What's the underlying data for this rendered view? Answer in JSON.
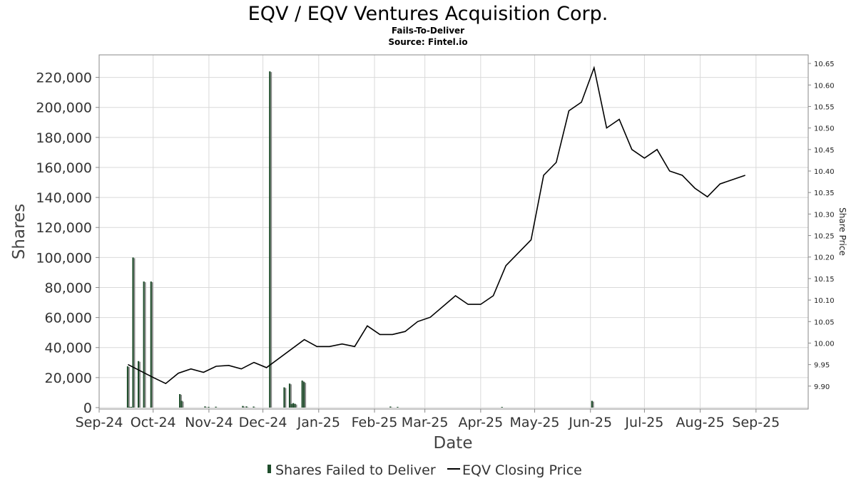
{
  "chart_data": {
    "type": "bar",
    "title": "EQV / EQV Ventures Acquisition Corp.",
    "subtitle": "Fails-To-Deliver",
    "source": "Source: Fintel.io",
    "xlabel": "Date",
    "ylabel": "Shares",
    "y2label": "Share Price",
    "x_range": [
      "2024-09-01",
      "2025-09-30"
    ],
    "ylim": [
      0,
      235000
    ],
    "y2lim": [
      9.85,
      10.67
    ],
    "x_ticks": [
      {
        "date": "2024-09-01",
        "label": "Sep-24"
      },
      {
        "date": "2024-10-01",
        "label": "Oct-24"
      },
      {
        "date": "2024-11-01",
        "label": "Nov-24"
      },
      {
        "date": "2024-12-01",
        "label": "Dec-24"
      },
      {
        "date": "2025-01-01",
        "label": "Jan-25"
      },
      {
        "date": "2025-02-01",
        "label": "Feb-25"
      },
      {
        "date": "2025-03-01",
        "label": "Mar-25"
      },
      {
        "date": "2025-04-01",
        "label": "Apr-25"
      },
      {
        "date": "2025-05-01",
        "label": "May-25"
      },
      {
        "date": "2025-06-01",
        "label": "Jun-25"
      },
      {
        "date": "2025-07-01",
        "label": "Jul-25"
      },
      {
        "date": "2025-08-01",
        "label": "Aug-25"
      },
      {
        "date": "2025-09-01",
        "label": "Sep-25"
      }
    ],
    "y_ticks": [
      {
        "value": 0,
        "label": "0"
      },
      {
        "value": 20000,
        "label": "20,000"
      },
      {
        "value": 40000,
        "label": "40,000"
      },
      {
        "value": 60000,
        "label": "60,000"
      },
      {
        "value": 80000,
        "label": "80,000"
      },
      {
        "value": 100000,
        "label": "100,000"
      },
      {
        "value": 120000,
        "label": "120,000"
      },
      {
        "value": 140000,
        "label": "140,000"
      },
      {
        "value": 160000,
        "label": "160,000"
      },
      {
        "value": 180000,
        "label": "180,000"
      },
      {
        "value": 200000,
        "label": "200,000"
      },
      {
        "value": 220000,
        "label": "220,000"
      }
    ],
    "y2_ticks": [
      {
        "value": 9.9,
        "label": "9.90"
      },
      {
        "value": 9.95,
        "label": "9.95"
      },
      {
        "value": 10.0,
        "label": "10.00"
      },
      {
        "value": 10.05,
        "label": "10.05"
      },
      {
        "value": 10.1,
        "label": "10.10"
      },
      {
        "value": 10.15,
        "label": "10.15"
      },
      {
        "value": 10.2,
        "label": "10.20"
      },
      {
        "value": 10.25,
        "label": "10.25"
      },
      {
        "value": 10.3,
        "label": "10.30"
      },
      {
        "value": 10.35,
        "label": "10.35"
      },
      {
        "value": 10.4,
        "label": "10.40"
      },
      {
        "value": 10.45,
        "label": "10.45"
      },
      {
        "value": 10.5,
        "label": "10.50"
      },
      {
        "value": 10.55,
        "label": "10.55"
      },
      {
        "value": 10.6,
        "label": "10.60"
      },
      {
        "value": 10.65,
        "label": "10.65"
      }
    ],
    "series": [
      {
        "name": "Shares Failed to Deliver",
        "type": "bar",
        "color": "#1f4d2b",
        "points": [
          {
            "date": "2024-09-17",
            "value": 27500
          },
          {
            "date": "2024-09-18",
            "value": 500
          },
          {
            "date": "2024-09-19",
            "value": 500
          },
          {
            "date": "2024-09-20",
            "value": 100000
          },
          {
            "date": "2024-09-23",
            "value": 31000
          },
          {
            "date": "2024-09-26",
            "value": 84000
          },
          {
            "date": "2024-09-30",
            "value": 84000
          },
          {
            "date": "2024-10-16",
            "value": 9000
          },
          {
            "date": "2024-10-17",
            "value": 4500
          },
          {
            "date": "2024-10-30",
            "value": 800
          },
          {
            "date": "2024-11-01",
            "value": 500
          },
          {
            "date": "2024-11-05",
            "value": 600
          },
          {
            "date": "2024-11-20",
            "value": 1100
          },
          {
            "date": "2024-11-22",
            "value": 800
          },
          {
            "date": "2024-11-26",
            "value": 700
          },
          {
            "date": "2024-12-05",
            "value": 224000
          },
          {
            "date": "2024-12-13",
            "value": 13500
          },
          {
            "date": "2024-12-16",
            "value": 16000
          },
          {
            "date": "2024-12-17",
            "value": 2500
          },
          {
            "date": "2024-12-18",
            "value": 3000
          },
          {
            "date": "2024-12-19",
            "value": 2500
          },
          {
            "date": "2024-12-23",
            "value": 18000
          },
          {
            "date": "2024-12-24",
            "value": 17000
          },
          {
            "date": "2025-02-10",
            "value": 700
          },
          {
            "date": "2025-02-14",
            "value": 500
          },
          {
            "date": "2025-04-13",
            "value": 400
          },
          {
            "date": "2025-06-02",
            "value": 4500
          }
        ]
      },
      {
        "name": "EQV Closing Price",
        "type": "line",
        "color": "#000000",
        "points": [
          {
            "date": "2024-09-17",
            "value": 9.95
          },
          {
            "date": "2024-10-01",
            "value": 9.92
          },
          {
            "date": "2024-10-08",
            "value": 9.906
          },
          {
            "date": "2024-10-15",
            "value": 9.93
          },
          {
            "date": "2024-10-22",
            "value": 9.94
          },
          {
            "date": "2024-10-29",
            "value": 9.932
          },
          {
            "date": "2024-11-05",
            "value": 9.946
          },
          {
            "date": "2024-11-12",
            "value": 9.948
          },
          {
            "date": "2024-11-19",
            "value": 9.94
          },
          {
            "date": "2024-11-26",
            "value": 9.955
          },
          {
            "date": "2024-12-03",
            "value": 9.943
          },
          {
            "date": "2024-12-24",
            "value": 10.008
          },
          {
            "date": "2024-12-31",
            "value": 9.992
          },
          {
            "date": "2025-01-07",
            "value": 9.992
          },
          {
            "date": "2025-01-14",
            "value": 9.998
          },
          {
            "date": "2025-01-21",
            "value": 9.992
          },
          {
            "date": "2025-01-28",
            "value": 10.04
          },
          {
            "date": "2025-02-04",
            "value": 10.02
          },
          {
            "date": "2025-02-11",
            "value": 10.02
          },
          {
            "date": "2025-02-18",
            "value": 10.027
          },
          {
            "date": "2025-02-25",
            "value": 10.05
          },
          {
            "date": "2025-03-04",
            "value": 10.06
          },
          {
            "date": "2025-03-18",
            "value": 10.11
          },
          {
            "date": "2025-03-25",
            "value": 10.09
          },
          {
            "date": "2025-04-01",
            "value": 10.09
          },
          {
            "date": "2025-04-08",
            "value": 10.11
          },
          {
            "date": "2025-04-15",
            "value": 10.18
          },
          {
            "date": "2025-04-29",
            "value": 10.24
          },
          {
            "date": "2025-05-06",
            "value": 10.39
          },
          {
            "date": "2025-05-13",
            "value": 10.42
          },
          {
            "date": "2025-05-20",
            "value": 10.54
          },
          {
            "date": "2025-05-27",
            "value": 10.56
          },
          {
            "date": "2025-06-03",
            "value": 10.64
          },
          {
            "date": "2025-06-10",
            "value": 10.5
          },
          {
            "date": "2025-06-17",
            "value": 10.52
          },
          {
            "date": "2025-06-24",
            "value": 10.45
          },
          {
            "date": "2025-07-01",
            "value": 10.43
          },
          {
            "date": "2025-07-08",
            "value": 10.45
          },
          {
            "date": "2025-07-15",
            "value": 10.4
          },
          {
            "date": "2025-07-22",
            "value": 10.39
          },
          {
            "date": "2025-07-29",
            "value": 10.36
          },
          {
            "date": "2025-08-05",
            "value": 10.34
          },
          {
            "date": "2025-08-12",
            "value": 10.37
          },
          {
            "date": "2025-08-26",
            "value": 10.39
          }
        ]
      }
    ],
    "legend": {
      "placement": "bottom-center"
    },
    "grid": true
  }
}
